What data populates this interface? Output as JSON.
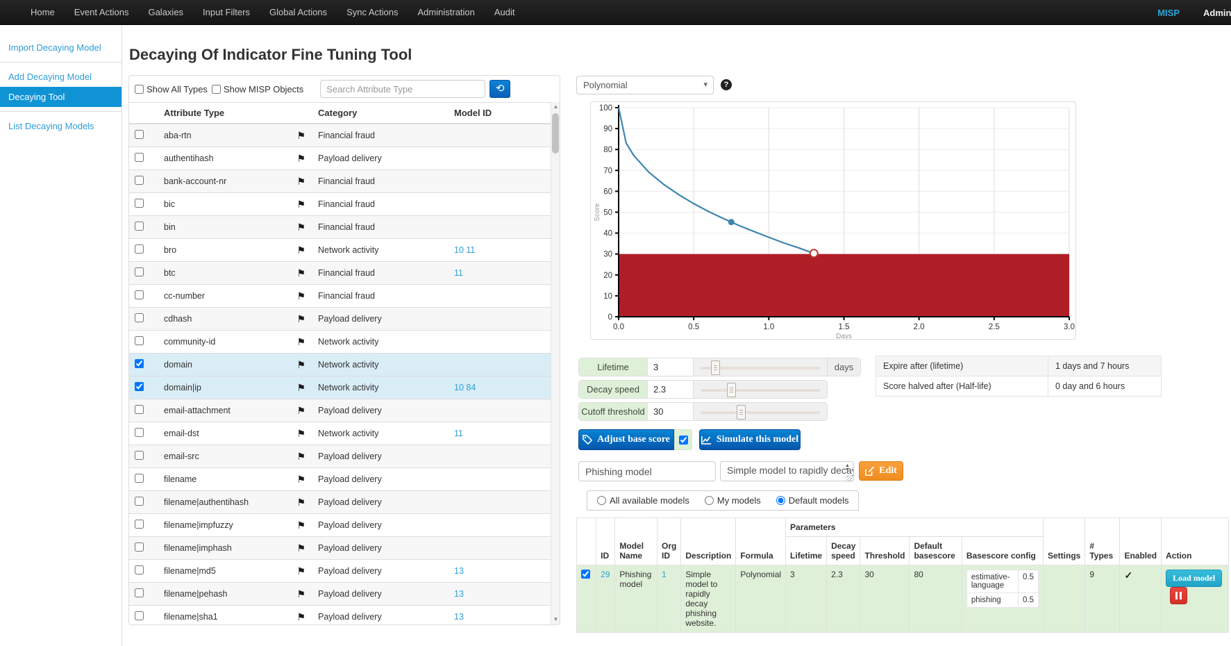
{
  "navbar": {
    "items": [
      "Home",
      "Event Actions",
      "Galaxies",
      "Input Filters",
      "Global Actions",
      "Sync Actions",
      "Administration",
      "Audit"
    ],
    "brand": "MISP",
    "user": "Admin",
    "brand_color": "#2fa4d9"
  },
  "sidebar": {
    "items": [
      {
        "label": "Import Decaying Model",
        "active": false,
        "divider_after": true
      },
      {
        "label": "Add Decaying Model",
        "active": false,
        "divider_after": false
      },
      {
        "label": "Decaying Tool",
        "active": true,
        "divider_after": true
      },
      {
        "label": "List Decaying Models",
        "active": false,
        "divider_after": false
      }
    ]
  },
  "page": {
    "title": "Decaying Of Indicator Fine Tuning Tool"
  },
  "attribute_panel": {
    "filters": {
      "show_all_types": "Show All Types",
      "show_misp_objects": "Show MISP Objects",
      "search_placeholder": "Search Attribute Type",
      "refresh_icon": "history-icon"
    },
    "columns": [
      "Attribute Type",
      "Category",
      "Model ID"
    ],
    "rows": [
      {
        "type": "aba-rtn",
        "category": "Financial fraud",
        "model_ids": "",
        "checked": false
      },
      {
        "type": "authentihash",
        "category": "Payload delivery",
        "model_ids": "",
        "checked": false
      },
      {
        "type": "bank-account-nr",
        "category": "Financial fraud",
        "model_ids": "",
        "checked": false
      },
      {
        "type": "bic",
        "category": "Financial fraud",
        "model_ids": "",
        "checked": false
      },
      {
        "type": "bin",
        "category": "Financial fraud",
        "model_ids": "",
        "checked": false
      },
      {
        "type": "bro",
        "category": "Network activity",
        "model_ids": "10 11",
        "checked": false
      },
      {
        "type": "btc",
        "category": "Financial fraud",
        "model_ids": "11",
        "checked": false
      },
      {
        "type": "cc-number",
        "category": "Financial fraud",
        "model_ids": "",
        "checked": false
      },
      {
        "type": "cdhash",
        "category": "Payload delivery",
        "model_ids": "",
        "checked": false
      },
      {
        "type": "community-id",
        "category": "Network activity",
        "model_ids": "",
        "checked": false
      },
      {
        "type": "domain",
        "category": "Network activity",
        "model_ids": "",
        "checked": true
      },
      {
        "type": "domain|ip",
        "category": "Network activity",
        "model_ids": "10 84",
        "checked": true
      },
      {
        "type": "email-attachment",
        "category": "Payload delivery",
        "model_ids": "",
        "checked": false
      },
      {
        "type": "email-dst",
        "category": "Network activity",
        "model_ids": "11",
        "checked": false
      },
      {
        "type": "email-src",
        "category": "Payload delivery",
        "model_ids": "",
        "checked": false
      },
      {
        "type": "filename",
        "category": "Payload delivery",
        "model_ids": "",
        "checked": false
      },
      {
        "type": "filename|authentihash",
        "category": "Payload delivery",
        "model_ids": "",
        "checked": false
      },
      {
        "type": "filename|impfuzzy",
        "category": "Payload delivery",
        "model_ids": "",
        "checked": false
      },
      {
        "type": "filename|imphash",
        "category": "Payload delivery",
        "model_ids": "",
        "checked": false
      },
      {
        "type": "filename|md5",
        "category": "Payload delivery",
        "model_ids": "13",
        "checked": false
      },
      {
        "type": "filename|pehash",
        "category": "Payload delivery",
        "model_ids": "13",
        "checked": false
      },
      {
        "type": "filename|sha1",
        "category": "Payload delivery",
        "model_ids": "13",
        "checked": false
      }
    ]
  },
  "controls": {
    "formula_select": "Polynomial",
    "sliders": [
      {
        "label": "Lifetime",
        "value": "3",
        "suffix": "days",
        "handle_pct": 9
      },
      {
        "label": "Decay speed",
        "value": "2.3",
        "suffix": "",
        "handle_pct": 22
      },
      {
        "label": "Cutoff threshold",
        "value": "30",
        "suffix": "",
        "handle_pct": 30
      }
    ],
    "adjust_button": "Adjust base score",
    "adjust_checkbox_checked": true,
    "simulate_button": "Simulate this model",
    "model_name": "Phishing model",
    "model_description": "Simple model to rapidly decay",
    "edit_button": "Edit",
    "info_rows": [
      {
        "label": "Expire after (lifetime)",
        "value": "1 days and 7 hours"
      },
      {
        "label": "Score halved after (Half-life)",
        "value": "0 day and 6 hours"
      }
    ]
  },
  "chart_data": {
    "type": "line",
    "xlabel": "Days",
    "ylabel": "Score",
    "xlim": [
      0,
      3
    ],
    "ylim": [
      0,
      100
    ],
    "xticks": [
      0,
      0.5,
      1,
      1.5,
      2,
      2.5,
      3
    ],
    "yticks": [
      0,
      10,
      20,
      30,
      40,
      50,
      60,
      70,
      80,
      90,
      100
    ],
    "threshold": 30,
    "threshold_color": "#b01f28",
    "line_color": "#3e84ae",
    "grid": true,
    "formula": "Polynomial",
    "formula_params": {
      "base_score": 100,
      "lifetime": 3,
      "decay_speed": 2.3,
      "cutoff_threshold": 30
    },
    "series": [
      {
        "name": "score",
        "points": [
          [
            0,
            100
          ],
          [
            0.05,
            83.1
          ],
          [
            0.1,
            77.2
          ],
          [
            0.2,
            69.2
          ],
          [
            0.3,
            63.3
          ],
          [
            0.4,
            58.4
          ],
          [
            0.5,
            54.1
          ],
          [
            0.6,
            50.3
          ],
          [
            0.7,
            46.9
          ],
          [
            0.8,
            43.7
          ],
          [
            0.9,
            40.8
          ],
          [
            1.0,
            38.0
          ],
          [
            1.1,
            35.3
          ],
          [
            1.2,
            32.9
          ],
          [
            1.3,
            30.3
          ]
        ]
      }
    ],
    "markers": [
      {
        "x": 0.75,
        "y": 45.3,
        "style": "filled"
      },
      {
        "x": 1.3,
        "y": 30.3,
        "style": "open"
      }
    ]
  },
  "models_section": {
    "radios": [
      {
        "label": "All available models",
        "checked": false
      },
      {
        "label": "My models",
        "checked": false
      },
      {
        "label": "Default models",
        "checked": true
      }
    ],
    "param_group_label": "Parameters",
    "plain_cols_left": [
      "",
      "ID",
      "Model Name",
      "Org ID",
      "Description",
      "Formula"
    ],
    "param_cols": [
      "Lifetime",
      "Decay speed",
      "Threshold",
      "Default basescore",
      "Basescore config"
    ],
    "plain_cols_right": [
      "Settings",
      "# Types",
      "Enabled",
      "Action"
    ],
    "row": {
      "checked": true,
      "id": "29",
      "model_name": "Phishing model",
      "org_id": "1",
      "description": "Simple model to rapidly decay phishing website.",
      "formula": "Polynomial",
      "lifetime": "3",
      "decay_speed": "2.3",
      "threshold": "30",
      "default_basescore": "80",
      "basescore_config": [
        {
          "key": "estimative-language",
          "value": "0.5"
        },
        {
          "key": "phishing",
          "value": "0.5"
        }
      ],
      "settings": "",
      "types_count": "9",
      "enabled": true,
      "load_button": "Load model"
    }
  }
}
